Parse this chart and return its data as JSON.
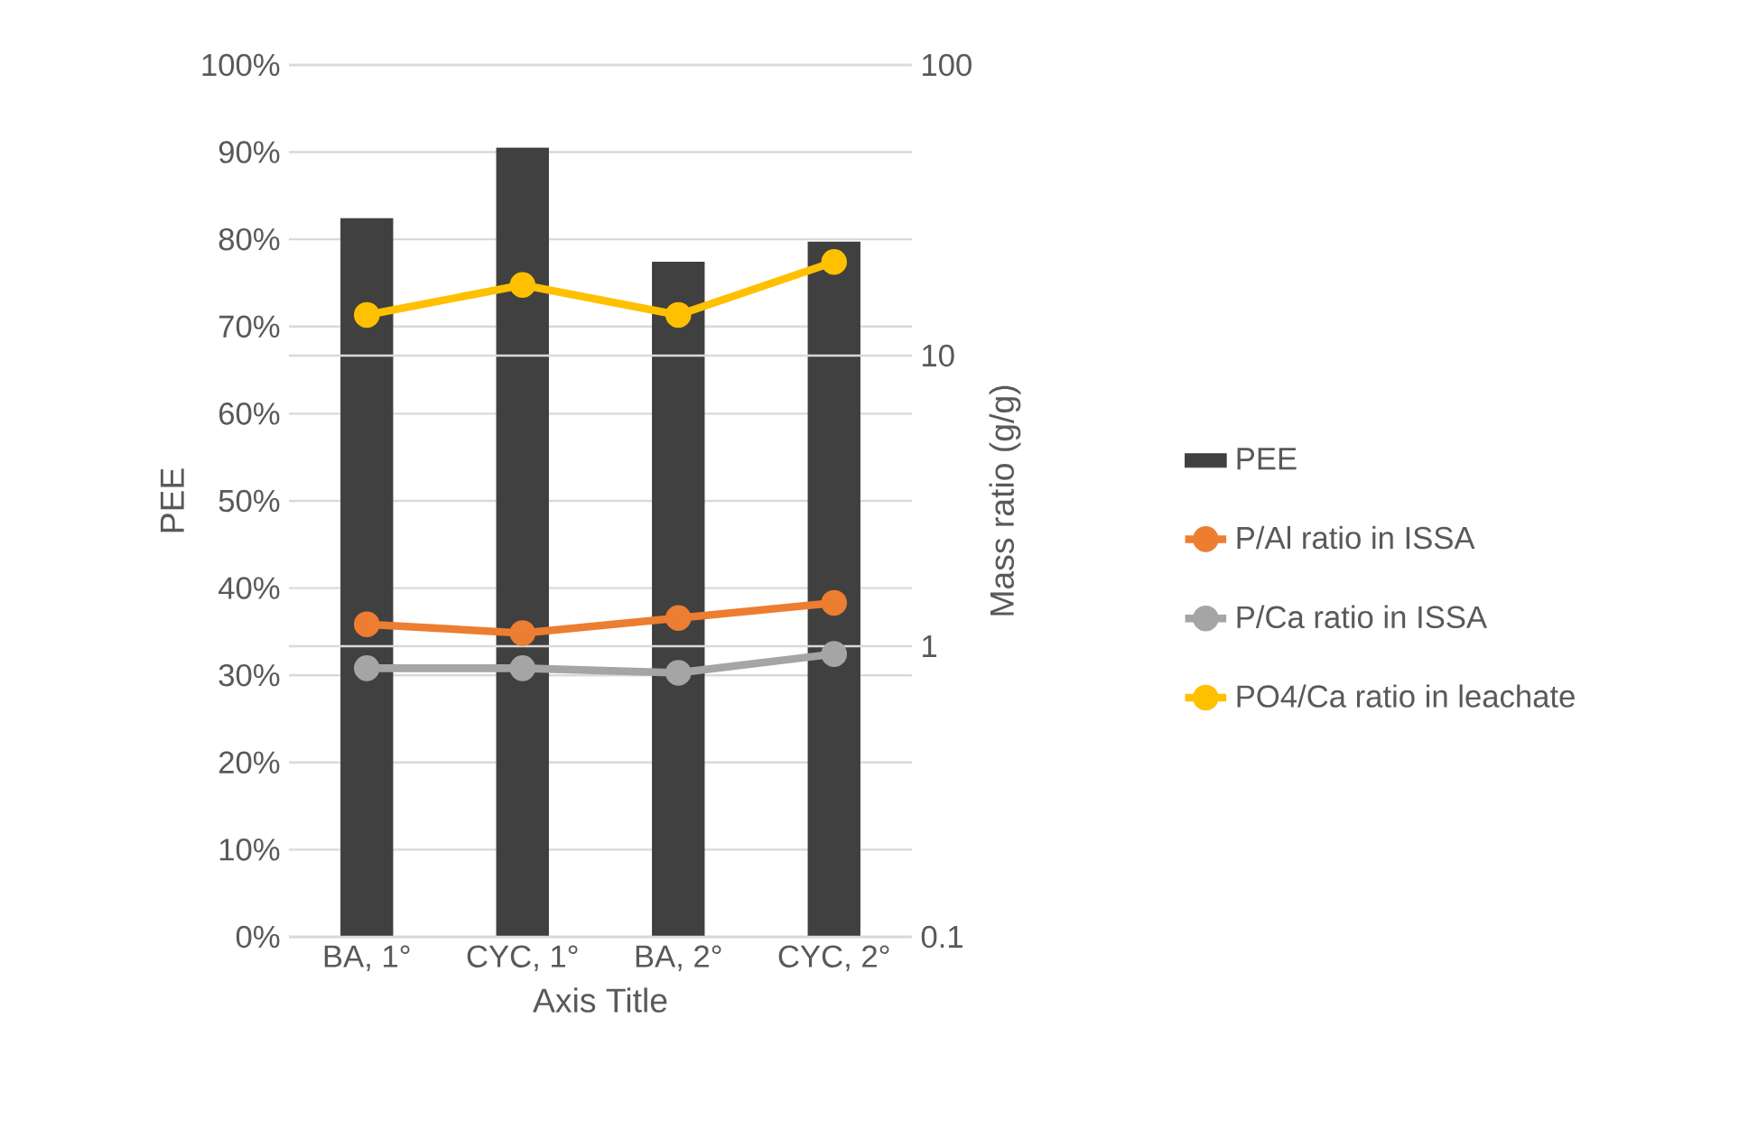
{
  "chart_data": {
    "type": "bar",
    "xlabel": "Axis Title",
    "ylabel": "PEE",
    "y2label": "Mass ratio (g/g)",
    "categories": [
      "BA, 1°",
      "CYC, 1°",
      "BA, 2°",
      "CYC, 2°"
    ],
    "series": [
      {
        "name": "PEE",
        "color": "#404040",
        "values": [
          82.3,
          90.4,
          77.3,
          79.6
        ]
      },
      {
        "name": "P/Al ratio in ISSA",
        "type": "line",
        "axis": "y2",
        "color": "#ed7d31",
        "values": [
          1.19,
          1.11,
          1.25,
          1.41
        ]
      },
      {
        "name": "P/Ca ratio in ISSA",
        "type": "line",
        "axis": "y2",
        "color": "#a5a5a5",
        "values": [
          0.84,
          0.84,
          0.81,
          0.94
        ]
      },
      {
        "name": "PO4/Ca ratio in leachate",
        "type": "line",
        "axis": "y2",
        "color": "#ffc000",
        "values": [
          13.8,
          17.5,
          13.8,
          21
        ]
      }
    ],
    "ylim": [
      0,
      100
    ],
    "yticks": [
      {
        "value": 0,
        "label": "0%"
      },
      {
        "value": 10,
        "label": "10%"
      },
      {
        "value": 20,
        "label": "20%"
      },
      {
        "value": 30,
        "label": "30%"
      },
      {
        "value": 40,
        "label": "40%"
      },
      {
        "value": 50,
        "label": "50%"
      },
      {
        "value": 60,
        "label": "60%"
      },
      {
        "value": 70,
        "label": "70%"
      },
      {
        "value": 80,
        "label": "80%"
      },
      {
        "value": 90,
        "label": "90%"
      },
      {
        "value": 100,
        "label": "100%"
      }
    ],
    "y2lim": [
      0.1,
      100
    ],
    "y2ticks": [
      0.1,
      1,
      10,
      100
    ],
    "log": "y2",
    "grid": "y",
    "legend": "right",
    "marker": "circle"
  }
}
